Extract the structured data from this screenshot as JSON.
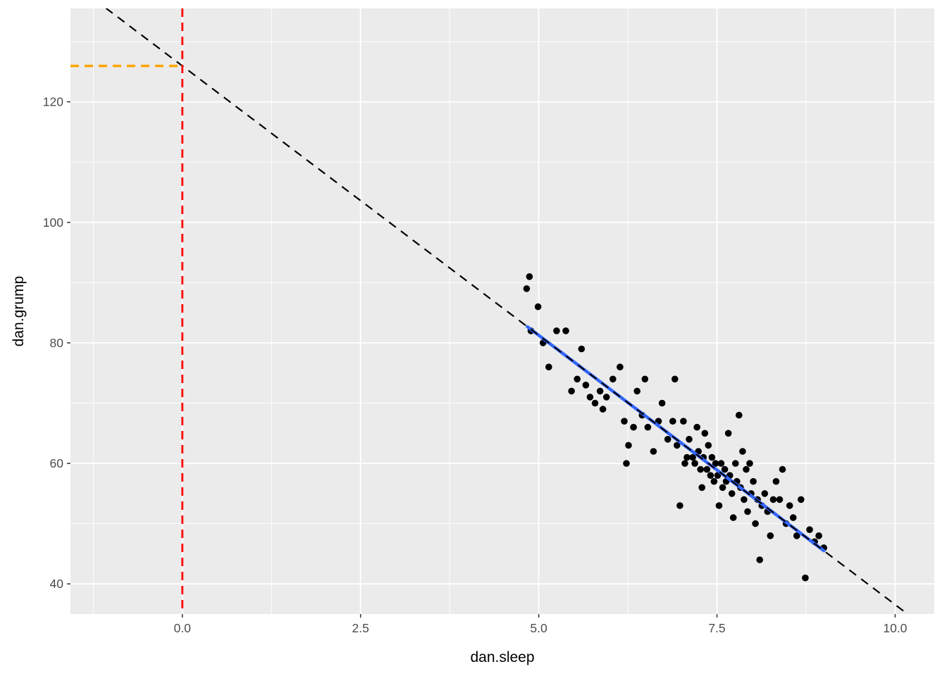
{
  "chart_data": {
    "type": "scatter",
    "title": "",
    "xlabel": "dan.sleep",
    "ylabel": "dan.grump",
    "x_ticks": [
      0,
      2.5,
      5,
      7.5,
      10
    ],
    "x_tick_labels": [
      "0.0",
      "2.5",
      "5.0",
      "7.5",
      "10.0"
    ],
    "y_ticks": [
      40,
      60,
      80,
      100,
      120
    ],
    "y_tick_labels": [
      "40",
      "60",
      "80",
      "100",
      "120"
    ],
    "x_minor_ticks": [
      -1.25,
      1.25,
      3.75,
      6.25,
      8.75
    ],
    "y_minor_ticks": [
      50,
      70,
      90,
      110,
      130
    ],
    "xlim": [
      -1.57,
      10.55
    ],
    "ylim": [
      35,
      135.5
    ],
    "grid": true,
    "legend": "none",
    "points": [
      [
        4.83,
        89
      ],
      [
        4.87,
        91
      ],
      [
        4.99,
        86
      ],
      [
        4.89,
        82
      ],
      [
        5.06,
        80
      ],
      [
        5.14,
        76
      ],
      [
        5.25,
        82
      ],
      [
        5.38,
        82
      ],
      [
        5.46,
        72
      ],
      [
        5.54,
        74
      ],
      [
        5.6,
        79
      ],
      [
        5.66,
        73
      ],
      [
        5.72,
        71
      ],
      [
        5.79,
        70
      ],
      [
        5.86,
        72
      ],
      [
        5.9,
        69
      ],
      [
        5.95,
        71
      ],
      [
        6.04,
        74
      ],
      [
        6.14,
        76
      ],
      [
        6.2,
        67
      ],
      [
        6.23,
        60
      ],
      [
        6.26,
        63
      ],
      [
        6.33,
        66
      ],
      [
        6.38,
        72
      ],
      [
        6.45,
        68
      ],
      [
        6.49,
        74
      ],
      [
        6.53,
        66
      ],
      [
        6.61,
        62
      ],
      [
        6.68,
        67
      ],
      [
        6.73,
        70
      ],
      [
        6.81,
        64
      ],
      [
        6.88,
        67
      ],
      [
        6.91,
        74
      ],
      [
        6.94,
        63
      ],
      [
        6.98,
        53
      ],
      [
        7.03,
        67
      ],
      [
        7.05,
        60
      ],
      [
        7.08,
        61
      ],
      [
        7.11,
        64
      ],
      [
        7.16,
        61
      ],
      [
        7.19,
        60
      ],
      [
        7.22,
        66
      ],
      [
        7.24,
        62
      ],
      [
        7.27,
        59
      ],
      [
        7.29,
        56
      ],
      [
        7.31,
        61
      ],
      [
        7.33,
        65
      ],
      [
        7.36,
        59
      ],
      [
        7.38,
        63
      ],
      [
        7.41,
        58
      ],
      [
        7.43,
        61
      ],
      [
        7.46,
        57
      ],
      [
        7.48,
        60
      ],
      [
        7.51,
        58
      ],
      [
        7.53,
        53
      ],
      [
        7.56,
        60
      ],
      [
        7.58,
        56
      ],
      [
        7.61,
        59
      ],
      [
        7.63,
        57
      ],
      [
        7.66,
        65
      ],
      [
        7.68,
        58
      ],
      [
        7.71,
        55
      ],
      [
        7.73,
        51
      ],
      [
        7.76,
        60
      ],
      [
        7.78,
        57
      ],
      [
        7.81,
        68
      ],
      [
        7.83,
        56
      ],
      [
        7.86,
        62
      ],
      [
        7.88,
        54
      ],
      [
        7.91,
        59
      ],
      [
        7.93,
        52
      ],
      [
        7.96,
        60
      ],
      [
        7.98,
        55
      ],
      [
        8.01,
        57
      ],
      [
        8.04,
        50
      ],
      [
        8.07,
        54
      ],
      [
        8.1,
        44
      ],
      [
        8.13,
        53
      ],
      [
        8.17,
        55
      ],
      [
        8.21,
        52
      ],
      [
        8.25,
        48
      ],
      [
        8.29,
        54
      ],
      [
        8.33,
        57
      ],
      [
        8.38,
        54
      ],
      [
        8.42,
        59
      ],
      [
        8.47,
        50
      ],
      [
        8.52,
        53
      ],
      [
        8.57,
        51
      ],
      [
        8.62,
        48
      ],
      [
        8.68,
        54
      ],
      [
        8.74,
        41
      ],
      [
        8.8,
        49
      ],
      [
        8.87,
        47
      ],
      [
        8.93,
        48
      ],
      [
        9.0,
        46
      ]
    ],
    "regression": {
      "intercept": 125.96,
      "slope": -8.94,
      "fit_x_range": [
        4.84,
        9.0
      ]
    },
    "reference_lines": {
      "vertical_line_x": 0,
      "horizontal_line_y": 125.96
    },
    "colors": {
      "panel": "#EBEBEB",
      "grid": "#FFFFFF",
      "point": "#000000",
      "fit_line": "#3366FF",
      "extrapolation_line": "#000000",
      "vertical_line": "#FF0000",
      "horizontal_line": "#FFA500",
      "tick_label": "#4D4D4D",
      "tick_mark": "#333333",
      "axis_title": "#000000"
    }
  }
}
